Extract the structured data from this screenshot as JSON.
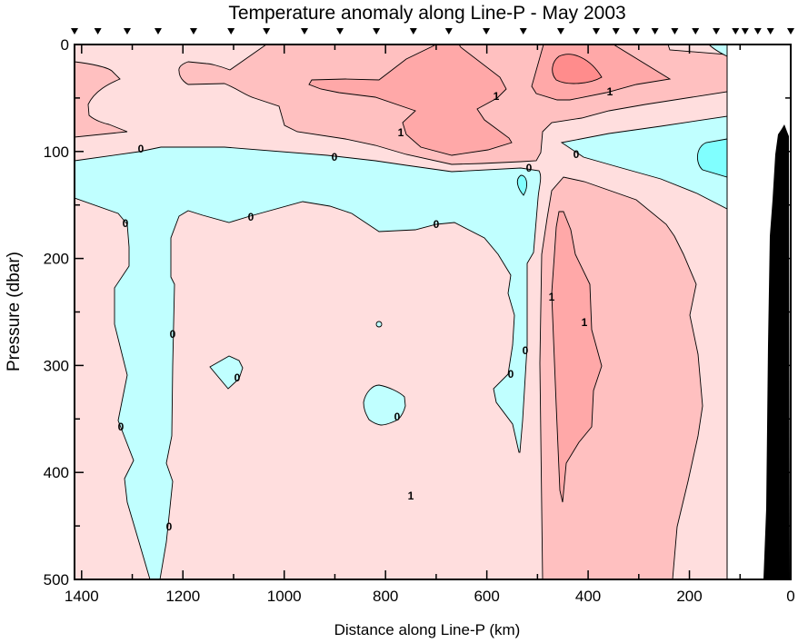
{
  "chart_data": {
    "type": "contour",
    "title": "Temperature anomaly along Line-P - May 2003",
    "xlabel": "Distance along Line-P (km)",
    "ylabel": "Pressure (dbar)",
    "xlim": [
      1414,
      0
    ],
    "ylim": [
      500,
      0
    ],
    "xticks": [
      1400,
      1200,
      1000,
      800,
      600,
      400,
      200,
      0
    ],
    "yticks": [
      0,
      100,
      200,
      300,
      400,
      500
    ],
    "contour_levels": [
      -1,
      0,
      1,
      2,
      3
    ],
    "fill_colors": {
      "below_-1": "#80FFFF",
      "-1_to_0": "#C0FFFF",
      "0_to_1": "#FFDEDE",
      "1_to_2": "#FFC0C0",
      "2_to_3": "#FFA8A8",
      "above_3": "#FF8C8C",
      "bathymetry": "#000000"
    },
    "contour_labels": [
      "0",
      "0",
      "0",
      "0",
      "0",
      "0",
      "0",
      "0",
      "0",
      "0",
      "0",
      "0",
      "0",
      "0",
      "1",
      "1",
      "1",
      "1",
      "1",
      "1"
    ],
    "stations_km": [
      1414,
      1368,
      1310,
      1249,
      1179,
      1105,
      1035,
      960,
      890,
      818,
      745,
      675,
      601,
      528,
      454,
      384,
      345,
      305,
      268,
      229,
      188,
      147,
      109,
      90,
      65,
      40,
      0
    ]
  }
}
